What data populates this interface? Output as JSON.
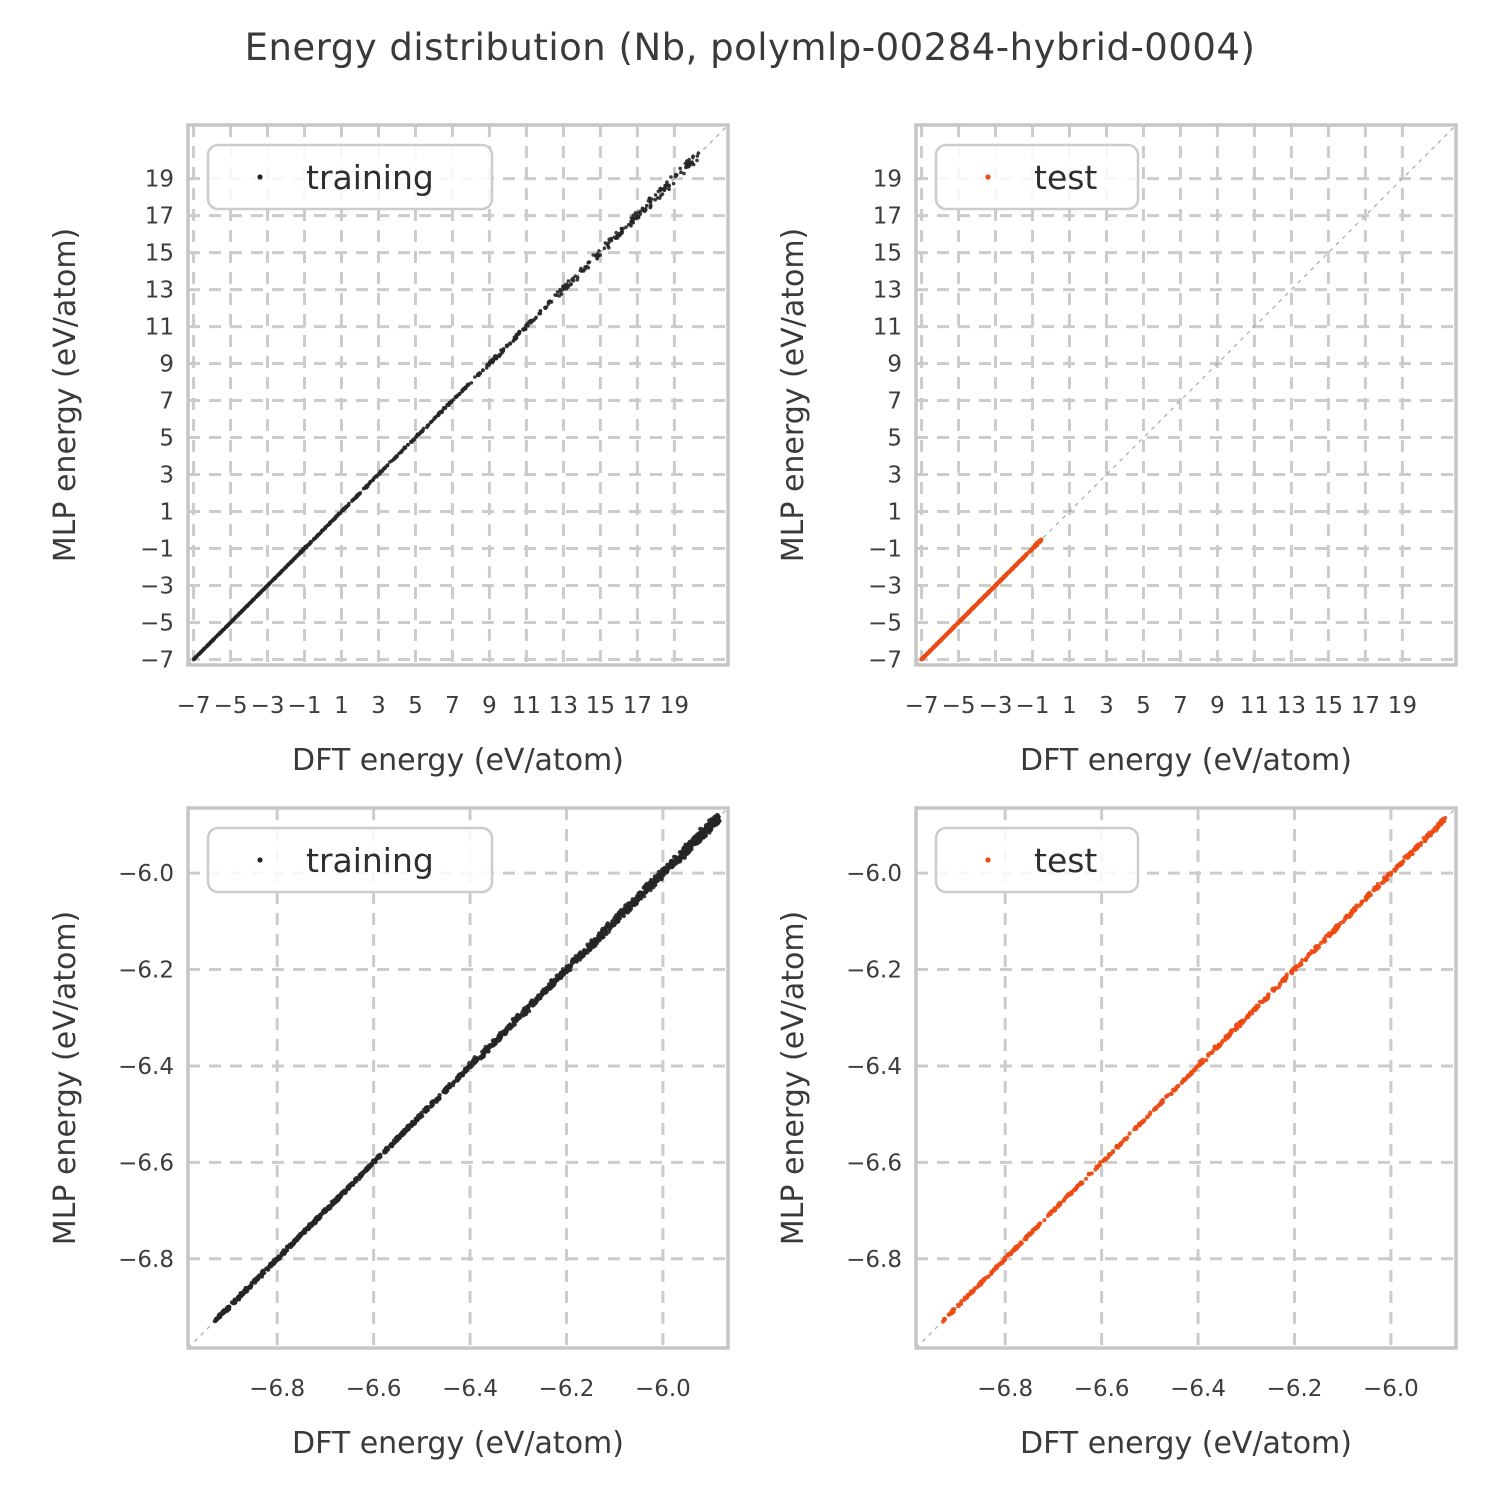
{
  "title": "Energy distribution (Nb, polymlp-00284-hybrid-0004)",
  "colors": {
    "background": "#ffffff",
    "training": "#262626",
    "test": "#ec4a13",
    "grid": "#cccccc",
    "spine": "#c6c6c6",
    "diagonal": "#999999",
    "text": "#3a3a3a",
    "tick_text": "#3d3d3d",
    "legend_border": "#cccccc",
    "legend_text": "#2e2e2e"
  },
  "axis_labels": {
    "x": "DFT energy (eV/atom)",
    "y": "MLP energy (eV/atom)"
  },
  "chart_data": [
    {
      "id": "training-full-range",
      "type": "scatter",
      "legend": "training",
      "series_color": "training",
      "description": "Training-set parity data lying on the identity line y=x from -7.0 to 20.4 eV/atom, dense below 0, sparser with growing scatter above 12",
      "xlim": [
        -7.3,
        21.9
      ],
      "ylim": [
        -7.3,
        21.9
      ],
      "grid": true,
      "diagonal_reference": true,
      "legend_position": "upper left",
      "marker_radius": 1.8,
      "seed": 11,
      "xticks": {
        "values": [
          -7,
          -5,
          -3,
          -1,
          1,
          3,
          5,
          7,
          9,
          11,
          13,
          15,
          17,
          19
        ],
        "labels": [
          "−7",
          "−5",
          "−3",
          "−1",
          "1",
          "3",
          "5",
          "7",
          "9",
          "11",
          "13",
          "15",
          "17",
          "19"
        ]
      },
      "yticks": {
        "values": [
          19,
          17,
          15,
          13,
          11,
          9,
          7,
          5,
          3,
          1,
          -1,
          -3,
          -5,
          -7
        ],
        "labels": [
          "19",
          "17",
          "15",
          "13",
          "11",
          "9",
          "7",
          "5",
          "3",
          "1",
          "−1",
          "−3",
          "−5",
          "−7"
        ]
      },
      "segments": [
        {
          "x0": -7.0,
          "x1": -0.8,
          "n": 420,
          "jitter": 0.015
        },
        {
          "x0": -1.25,
          "x1": -0.9,
          "n": 12,
          "jitter": 0.07
        },
        {
          "x0": -0.8,
          "x1": 2.0,
          "n": 110,
          "jitter": 0.03
        },
        {
          "x0": 2.0,
          "x1": 8.0,
          "n": 150,
          "jitter": 0.055
        },
        {
          "x0": 8.0,
          "x1": 12.5,
          "n": 95,
          "jitter": 0.1
        },
        {
          "x0": 12.5,
          "x1": 16.5,
          "n": 78,
          "jitter": 0.19
        },
        {
          "x0": 16.5,
          "x1": 20.4,
          "n": 88,
          "jitter": 0.22
        }
      ]
    },
    {
      "id": "test-full-range",
      "type": "scatter",
      "legend": "test",
      "series_color": "test",
      "description": "Test-set parity data on the identity line y=x from -7.0 to about -0.55 eV/atom with a small clump near -0.7",
      "xlim": [
        -7.3,
        21.9
      ],
      "ylim": [
        -7.3,
        21.9
      ],
      "grid": true,
      "diagonal_reference": true,
      "legend_position": "upper left",
      "marker_radius": 2.0,
      "seed": 22,
      "xticks": {
        "values": [
          -7,
          -5,
          -3,
          -1,
          1,
          3,
          5,
          7,
          9,
          11,
          13,
          15,
          17,
          19
        ],
        "labels": [
          "−7",
          "−5",
          "−3",
          "−1",
          "1",
          "3",
          "5",
          "7",
          "9",
          "11",
          "13",
          "15",
          "17",
          "19"
        ]
      },
      "yticks": {
        "values": [
          19,
          17,
          15,
          13,
          11,
          9,
          7,
          5,
          3,
          1,
          -1,
          -3,
          -5,
          -7
        ],
        "labels": [
          "19",
          "17",
          "15",
          "13",
          "11",
          "9",
          "7",
          "5",
          "3",
          "1",
          "−1",
          "−3",
          "−5",
          "−7"
        ]
      },
      "segments": [
        {
          "x0": -7.0,
          "x1": -3.0,
          "n": 310,
          "jitter": 0.012
        },
        {
          "x0": -3.0,
          "x1": -1.0,
          "n": 120,
          "jitter": 0.02
        },
        {
          "x0": -0.95,
          "x1": -0.55,
          "n": 22,
          "jitter": 0.07
        }
      ]
    },
    {
      "id": "training-zoomed",
      "type": "scatter",
      "legend": "training",
      "series_color": "training",
      "description": "Zoomed training-set parity data on y=x from -6.93 to -5.885 eV/atom, dense thick line, slightly noisier above -6.4",
      "xlim": [
        -6.985,
        -5.865
      ],
      "ylim": [
        -6.985,
        -5.865
      ],
      "grid": true,
      "diagonal_reference": true,
      "legend_position": "upper left",
      "marker_radius": 2.2,
      "seed": 33,
      "xticks": {
        "values": [
          -6.8,
          -6.6,
          -6.4,
          -6.2,
          -6.0
        ],
        "labels": [
          "−6.8",
          "−6.6",
          "−6.4",
          "−6.2",
          "−6.0"
        ]
      },
      "yticks": {
        "values": [
          -6.0,
          -6.2,
          -6.4,
          -6.6,
          -6.8
        ],
        "labels": [
          "−6.0",
          "−6.2",
          "−6.4",
          "−6.6",
          "−6.8"
        ]
      },
      "segments": [
        {
          "x0": -6.93,
          "x1": -6.4,
          "n": 540,
          "jitter": 0.0035
        },
        {
          "x0": -6.4,
          "x1": -6.15,
          "n": 290,
          "jitter": 0.006
        },
        {
          "x0": -6.15,
          "x1": -5.885,
          "n": 370,
          "jitter": 0.008
        },
        {
          "x0": -5.96,
          "x1": -5.885,
          "n": 130,
          "jitter": 0.01
        }
      ]
    },
    {
      "id": "test-zoomed",
      "type": "scatter",
      "legend": "test",
      "series_color": "test",
      "description": "Zoomed test-set parity data on y=x from -6.93 to -5.885 eV/atom, thin continuous line",
      "xlim": [
        -6.985,
        -5.865
      ],
      "ylim": [
        -6.985,
        -5.865
      ],
      "grid": true,
      "diagonal_reference": true,
      "legend_position": "upper left",
      "marker_radius": 2.1,
      "seed": 44,
      "xticks": {
        "values": [
          -6.8,
          -6.6,
          -6.4,
          -6.2,
          -6.0
        ],
        "labels": [
          "−6.8",
          "−6.6",
          "−6.4",
          "−6.2",
          "−6.0"
        ]
      },
      "yticks": {
        "values": [
          -6.0,
          -6.2,
          -6.4,
          -6.6,
          -6.8
        ],
        "labels": [
          "−6.0",
          "−6.2",
          "−6.4",
          "−6.6",
          "−6.8"
        ]
      },
      "segments": [
        {
          "x0": -6.93,
          "x1": -6.4,
          "n": 290,
          "jitter": 0.0025
        },
        {
          "x0": -6.4,
          "x1": -5.885,
          "n": 350,
          "jitter": 0.004
        }
      ]
    }
  ]
}
